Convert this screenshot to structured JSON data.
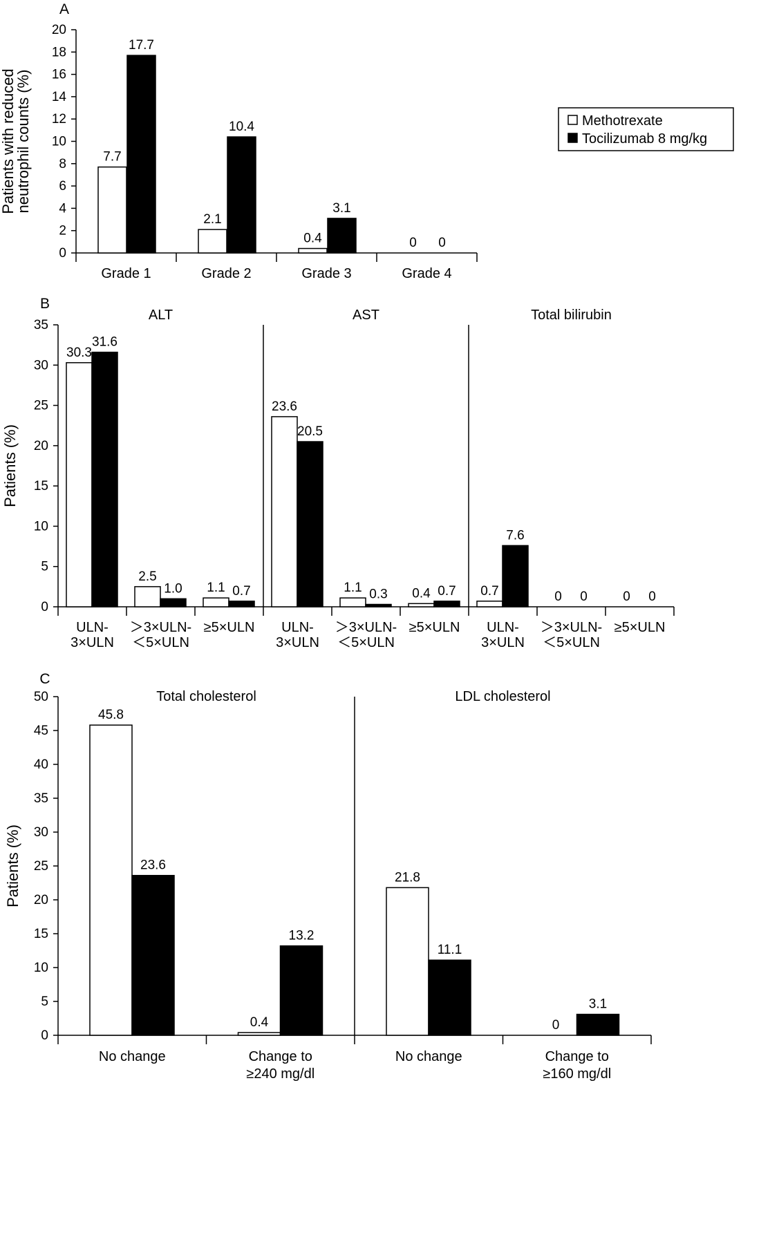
{
  "legend": {
    "items": [
      {
        "label": "Methotrexate",
        "color": "#ffffff"
      },
      {
        "label": "Tocilizumab 8 mg/kg",
        "color": "#000000"
      }
    ]
  },
  "chart_data": [
    {
      "panel": "A",
      "type": "bar",
      "ylabel": [
        "Patients with reduced",
        "neutrophil counts (%)"
      ],
      "ylim": [
        0,
        20
      ],
      "yticks": [
        0,
        2,
        4,
        6,
        8,
        10,
        12,
        14,
        16,
        18,
        20
      ],
      "categories": [
        [
          "Grade 1"
        ],
        [
          "Grade 2"
        ],
        [
          "Grade 3"
        ],
        [
          "Grade 4"
        ]
      ],
      "series": [
        {
          "name": "Methotrexate",
          "values": [
            7.7,
            2.1,
            0.4,
            0
          ],
          "labels": [
            "7.7",
            "2.1",
            "0.4",
            "0"
          ]
        },
        {
          "name": "Tocilizumab 8 mg/kg",
          "values": [
            17.7,
            10.4,
            3.1,
            0
          ],
          "labels": [
            "17.7",
            "10.4",
            "3.1",
            "0"
          ]
        }
      ]
    },
    {
      "panel": "B",
      "type": "bar",
      "ylabel": [
        "Patients (%)"
      ],
      "ylim": [
        0,
        35
      ],
      "yticks": [
        0,
        5,
        10,
        15,
        20,
        25,
        30,
        35
      ],
      "groups": [
        "ALT",
        "AST",
        "Total bilirubin"
      ],
      "categories": [
        [
          "ULN-",
          "3×ULN"
        ],
        [
          "＞3×ULN-",
          "＜5×ULN"
        ],
        [
          "≥5×ULN"
        ],
        [
          "ULN-",
          "3×ULN"
        ],
        [
          "＞3×ULN-",
          "＜5×ULN"
        ],
        [
          "≥5×ULN"
        ],
        [
          "ULN-",
          "3×ULN"
        ],
        [
          "＞3×ULN-",
          "＜5×ULN"
        ],
        [
          "≥5×ULN"
        ]
      ],
      "series": [
        {
          "name": "Methotrexate",
          "values": [
            30.3,
            2.5,
            1.1,
            23.6,
            1.1,
            0.4,
            0.7,
            0,
            0
          ],
          "labels": [
            "30.3",
            "2.5",
            "1.1",
            "23.6",
            "1.1",
            "0.4",
            "0.7",
            "0",
            "0"
          ]
        },
        {
          "name": "Tocilizumab 8 mg/kg",
          "values": [
            31.6,
            1.0,
            0.7,
            20.5,
            0.3,
            0.7,
            7.6,
            0,
            0
          ],
          "labels": [
            "31.6",
            "1.0",
            "0.7",
            "20.5",
            "0.3",
            "0.7",
            "7.6",
            "0",
            "0"
          ]
        }
      ]
    },
    {
      "panel": "C",
      "type": "bar",
      "ylabel": [
        "Patients (%)"
      ],
      "ylim": [
        0,
        50
      ],
      "yticks": [
        0,
        5,
        10,
        15,
        20,
        25,
        30,
        35,
        40,
        45,
        50
      ],
      "groups": [
        "Total cholesterol",
        "LDL cholesterol"
      ],
      "categories": [
        [
          "No change"
        ],
        [
          "Change to",
          "≥240 mg/dl"
        ],
        [
          "No change"
        ],
        [
          "Change to",
          "≥160 mg/dl"
        ]
      ],
      "series": [
        {
          "name": "Methotrexate",
          "values": [
            45.8,
            0.4,
            21.8,
            0
          ],
          "labels": [
            "45.8",
            "0.4",
            "21.8",
            "0"
          ]
        },
        {
          "name": "Tocilizumab 8 mg/kg",
          "values": [
            23.6,
            13.2,
            11.1,
            3.1
          ],
          "labels": [
            "23.6",
            "13.2",
            "11.1",
            "3.1"
          ]
        }
      ]
    }
  ]
}
